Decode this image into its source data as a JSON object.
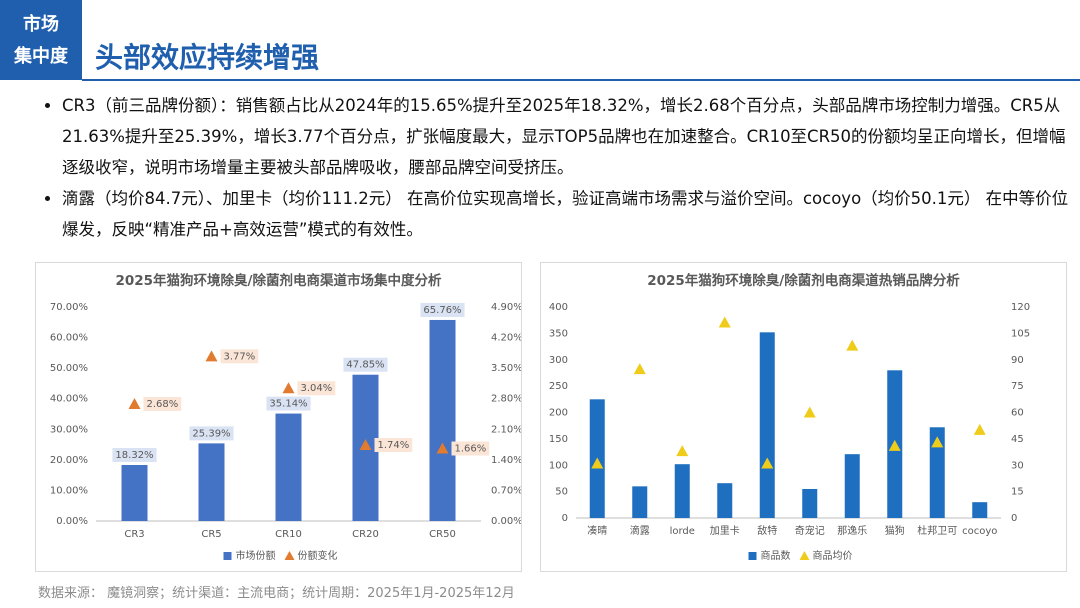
{
  "badge": [
    "市场",
    "集中度"
  ],
  "title": "头部效应持续增强",
  "bullets": [
    "CR3（前三品牌份额）：销售额占比从2024年的15.65%提升至2025年18.32%，增长2.68个百分点，头部品牌市场控制力增强。CR5从21.63%提升至25.39%，增长3.77个百分点，扩张幅度最大，显示TOP5品牌也在加速整合。CR10至CR50的份额均呈正向增长，但增幅逐级收窄，说明市场增量主要被头部品牌吸收，腰部品牌空间受挤压。",
    "滴露（均价84.7元）、加里卡（均价111.2元） 在高价位实现高增长，验证高端市场需求与溢价空间。cocoyo（均价50.1元） 在中等价位爆发，反映“精准产品+高效运营”模式的有效性。"
  ],
  "source": "数据来源： 魔镜洞察；统计渠道：主流电商；统计周期：2025年1月-2025年12月",
  "chart_data": [
    {
      "type": "bar",
      "title": "2025年猫狗环境除臭/除菌剂电商渠道市场集中度分析",
      "categories": [
        "CR3",
        "CR5",
        "CR10",
        "CR20",
        "CR50"
      ],
      "series": [
        {
          "name": "市场份额",
          "color": "#4472c4",
          "values": [
            18.32,
            25.39,
            35.14,
            47.85,
            65.76
          ],
          "value_labels": [
            "18.32%",
            "25.39%",
            "35.14%",
            "47.85%",
            "65.76%"
          ]
        },
        {
          "name": "份额变化",
          "color": "#e07b30",
          "axis": "y2",
          "marker": "triangle",
          "values": [
            2.68,
            3.77,
            3.04,
            1.74,
            1.66
          ],
          "value_labels": [
            "2.68%",
            "3.77%",
            "3.04%",
            "1.74%",
            "1.66%"
          ]
        }
      ],
      "ylim": [
        0,
        70
      ],
      "yticks": [
        {
          "value": 0,
          "label": "0.00%"
        },
        {
          "value": 10,
          "label": "10.00%"
        },
        {
          "value": 20,
          "label": "20.00%"
        },
        {
          "value": 30,
          "label": "30.00%"
        },
        {
          "value": 40,
          "label": "40.00%"
        },
        {
          "value": 50,
          "label": "50.00%"
        },
        {
          "value": 60,
          "label": "60.00%"
        },
        {
          "value": 70,
          "label": "70.00%"
        }
      ],
      "y2lim": [
        0,
        4.9
      ],
      "y2ticks": [
        {
          "value": 0,
          "label": "0.00%"
        },
        {
          "value": 0.7,
          "label": "0.70%"
        },
        {
          "value": 1.4,
          "label": "1.40%"
        },
        {
          "value": 2.1,
          "label": "2.10%"
        },
        {
          "value": 2.8,
          "label": "2.80%"
        },
        {
          "value": 3.5,
          "label": "3.50%"
        },
        {
          "value": 4.2,
          "label": "4.20%"
        },
        {
          "value": 4.9,
          "label": "4.90%"
        }
      ],
      "grid": false
    },
    {
      "type": "bar",
      "title": "2025年猫狗环境除臭/除菌剂电商渠道热销品牌分析",
      "categories": [
        "凑晴",
        "滴露",
        "lorde",
        "加里卡",
        "敌特",
        "奇宠记",
        "那逸乐",
        "猫狗",
        "杜邦卫可",
        "cocoyo"
      ],
      "series": [
        {
          "name": "商品数",
          "color": "#1f6fc0",
          "values": [
            225,
            60,
            102,
            66,
            352,
            55,
            121,
            280,
            172,
            30
          ]
        },
        {
          "name": "商品均价",
          "color": "#f0cc1a",
          "axis": "y2",
          "marker": "triangle",
          "values": [
            31,
            84.7,
            38,
            111.2,
            31,
            60,
            98,
            41,
            43,
            50.1
          ]
        }
      ],
      "ylim": [
        0,
        400
      ],
      "yticks": [
        0,
        50,
        100,
        150,
        200,
        250,
        300,
        350,
        400
      ],
      "y2lim": [
        0,
        120
      ],
      "y2ticks": [
        0,
        15,
        30,
        45,
        60,
        75,
        90,
        105,
        120
      ],
      "grid": false
    }
  ]
}
